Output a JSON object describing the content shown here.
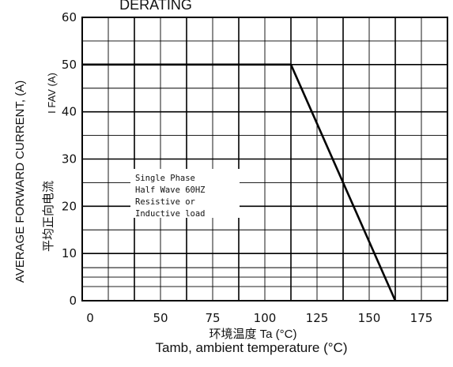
{
  "chart_data": {
    "type": "line",
    "title": "DERATING",
    "ylabel_en": "AVERAGE FORWARD CURRENT, (A)",
    "ylabel_cn": "平均正向电流",
    "ylabel_unit": "I FAV (A)",
    "xlabel_cn": "环境温度 Ta (°C)",
    "xlabel_en": "Tamb, ambient temperature (°C)",
    "xlim": [
      0,
      175
    ],
    "ylim": [
      0,
      60
    ],
    "x_tick_labels": [
      "0",
      "50",
      "75",
      "100",
      "125",
      "150",
      "175"
    ],
    "y_tick_labels": [
      "0",
      "10",
      "20",
      "30",
      "40",
      "50",
      "60"
    ],
    "series": [
      {
        "x": [
          0,
          100,
          150
        ],
        "y": [
          50,
          50,
          0
        ]
      }
    ],
    "annotation": [
      "Single Phase",
      "Half Wave 60HZ",
      "Resistive or",
      "Inductive load"
    ],
    "grid": true,
    "colors": {
      "line": "#000000",
      "grid": "#000000"
    }
  }
}
